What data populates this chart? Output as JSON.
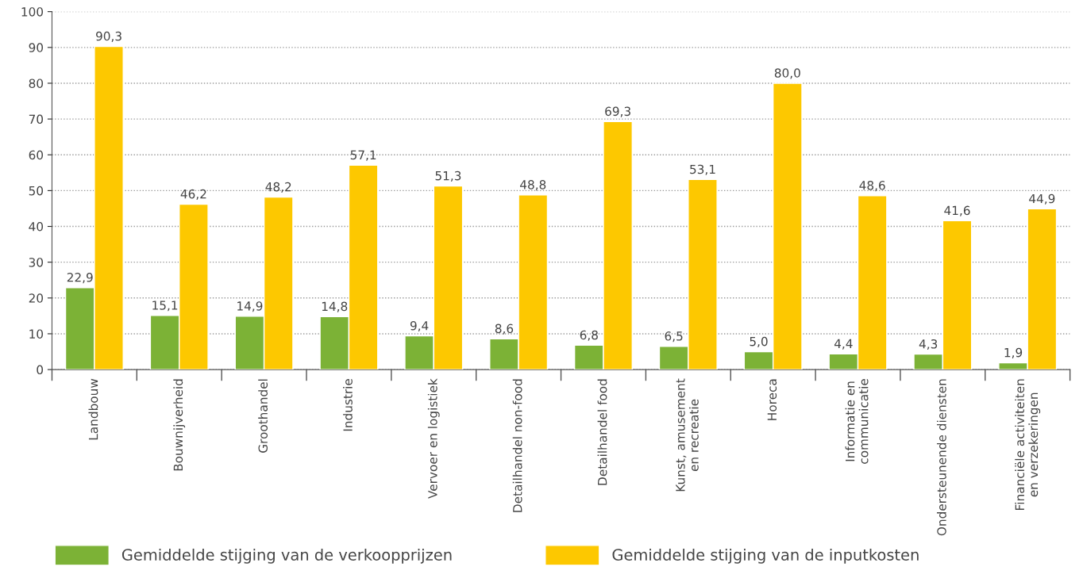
{
  "chart_data": {
    "type": "bar",
    "categories": [
      "Landbouw",
      "Bouwnijverheid",
      "Groothandel",
      "Industrie",
      "Vervoer en logistiek",
      "Detailhandel non-food",
      "Detailhandel food",
      "Kunst, amusement\nen recreatie",
      "Horeca",
      "Informatie en\ncommunicatie",
      "Ondersteunende diensten",
      "Financiële activiteiten\nen verzekeringen"
    ],
    "series": [
      {
        "name": "Gemiddelde stijging van de verkoopprijzen",
        "color": "#7cb236",
        "values": [
          22.9,
          15.1,
          14.9,
          14.8,
          9.4,
          8.6,
          6.8,
          6.5,
          5.0,
          4.4,
          4.3,
          1.9
        ],
        "value_labels": [
          "22,9",
          "15,1",
          "14,9",
          "14,8",
          "9,4",
          "8,6",
          "6,8",
          "6,5",
          "5,0",
          "4,4",
          "4,3",
          "1,9"
        ]
      },
      {
        "name": "Gemiddelde stijging van de inputkosten",
        "color": "#fdc800",
        "values": [
          90.3,
          46.2,
          48.2,
          57.1,
          51.3,
          48.8,
          69.3,
          53.1,
          80.0,
          48.6,
          41.6,
          44.9
        ],
        "value_labels": [
          "90,3",
          "46,2",
          "48,2",
          "57,1",
          "51,3",
          "48,8",
          "69,3",
          "53,1",
          "80,0",
          "48,6",
          "41,6",
          "44,9"
        ]
      }
    ],
    "ylim": [
      0,
      100
    ],
    "yticks": [
      0,
      10,
      20,
      30,
      40,
      50,
      60,
      70,
      80,
      90,
      100
    ],
    "grid": "y",
    "legend": "bottom"
  }
}
